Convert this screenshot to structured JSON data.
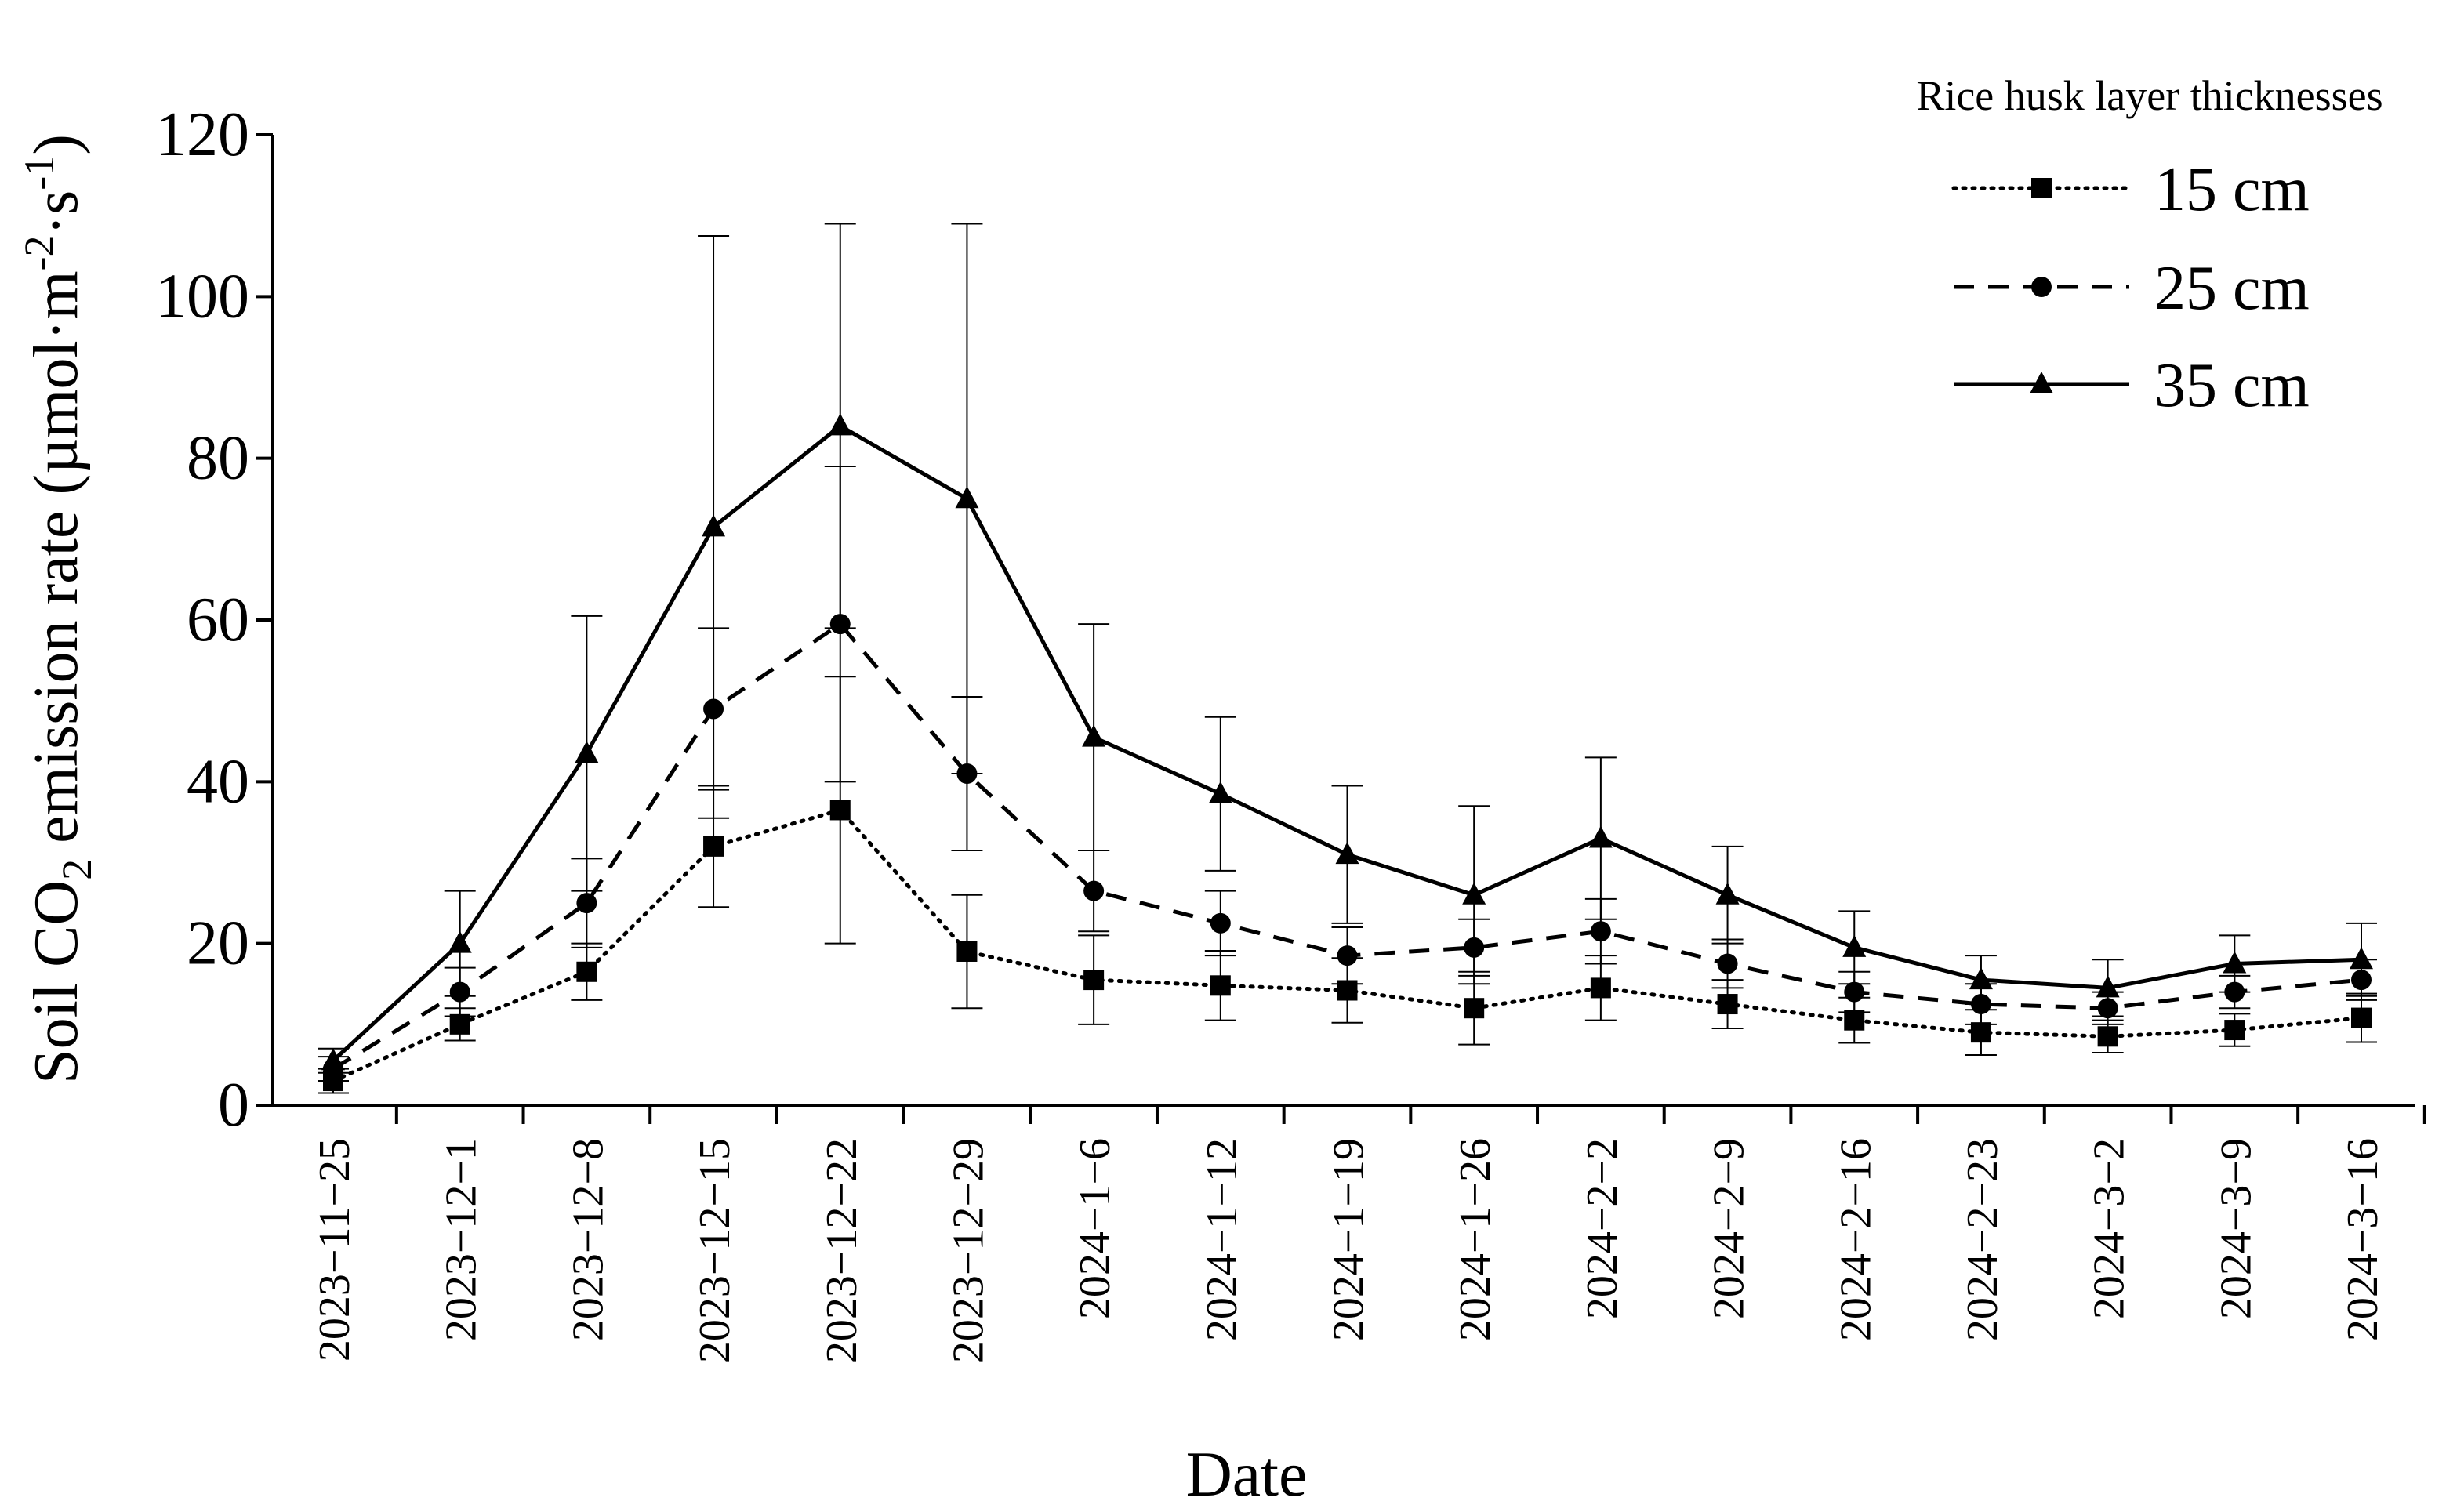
{
  "chart_data": {
    "type": "line",
    "title": "",
    "xlabel": "Date",
    "ylabel_parts": {
      "prefix": "Soil CO",
      "sub": "2",
      "mid": " emission rate (µmol·m",
      "sup1": "-2",
      "mid2": "·s",
      "sup2": "-1",
      "suffix": ")"
    },
    "ylim": [
      0,
      120
    ],
    "yticks": [
      0,
      20,
      40,
      60,
      80,
      100,
      120
    ],
    "categories": [
      "2023−11−25",
      "2023−12−1",
      "2023−12−8",
      "2023−12−15",
      "2023−12−22",
      "2023−12−29",
      "2024−1−6",
      "2024−1−12",
      "2024−1−19",
      "2024−1−26",
      "2024−2−2",
      "2024−2−9",
      "2024−2−16",
      "2024−2−23",
      "2024−3−2",
      "2024−3−9",
      "2024−3−16"
    ],
    "legend": {
      "title": "Rice husk layer thicknesses",
      "position": "top-right"
    },
    "series": [
      {
        "name": "15 cm",
        "style": "dotted",
        "marker": "square",
        "values": [
          3,
          10,
          16.5,
          32,
          36.5,
          19,
          15.5,
          14.8,
          14.2,
          12,
          14.5,
          12.5,
          10.5,
          9,
          8.5,
          9.3,
          10.8
        ],
        "errors": [
          1.5,
          2,
          3.5,
          7.5,
          16.5,
          7,
          5.5,
          4.3,
          4,
          4.5,
          4,
          3,
          2.8,
          2.8,
          2,
          2,
          3
        ]
      },
      {
        "name": "25 cm",
        "style": "dashed",
        "marker": "circle",
        "values": [
          4.5,
          14,
          25,
          49,
          59.5,
          41,
          26.5,
          22.5,
          18.5,
          19.5,
          21.5,
          17.5,
          14,
          12.5,
          12,
          14,
          15.5
        ],
        "errors": [
          1.5,
          3,
          5.5,
          10,
          19.5,
          9.5,
          5,
          4,
          3.5,
          3.5,
          4,
          3,
          2.5,
          2.5,
          2,
          2,
          2.5
        ]
      },
      {
        "name": "35 cm",
        "style": "solid",
        "marker": "triangle",
        "values": [
          5.5,
          20,
          43.5,
          71.5,
          84,
          75,
          45.5,
          38.5,
          31,
          26,
          33,
          26,
          19.5,
          15.5,
          14.5,
          17.5,
          18
        ],
        "errors": [
          1.5,
          6.5,
          17,
          36,
          25,
          34,
          14,
          9.5,
          8.5,
          11,
          10,
          6,
          4.5,
          3,
          3.5,
          3.5,
          4.5
        ]
      }
    ]
  }
}
